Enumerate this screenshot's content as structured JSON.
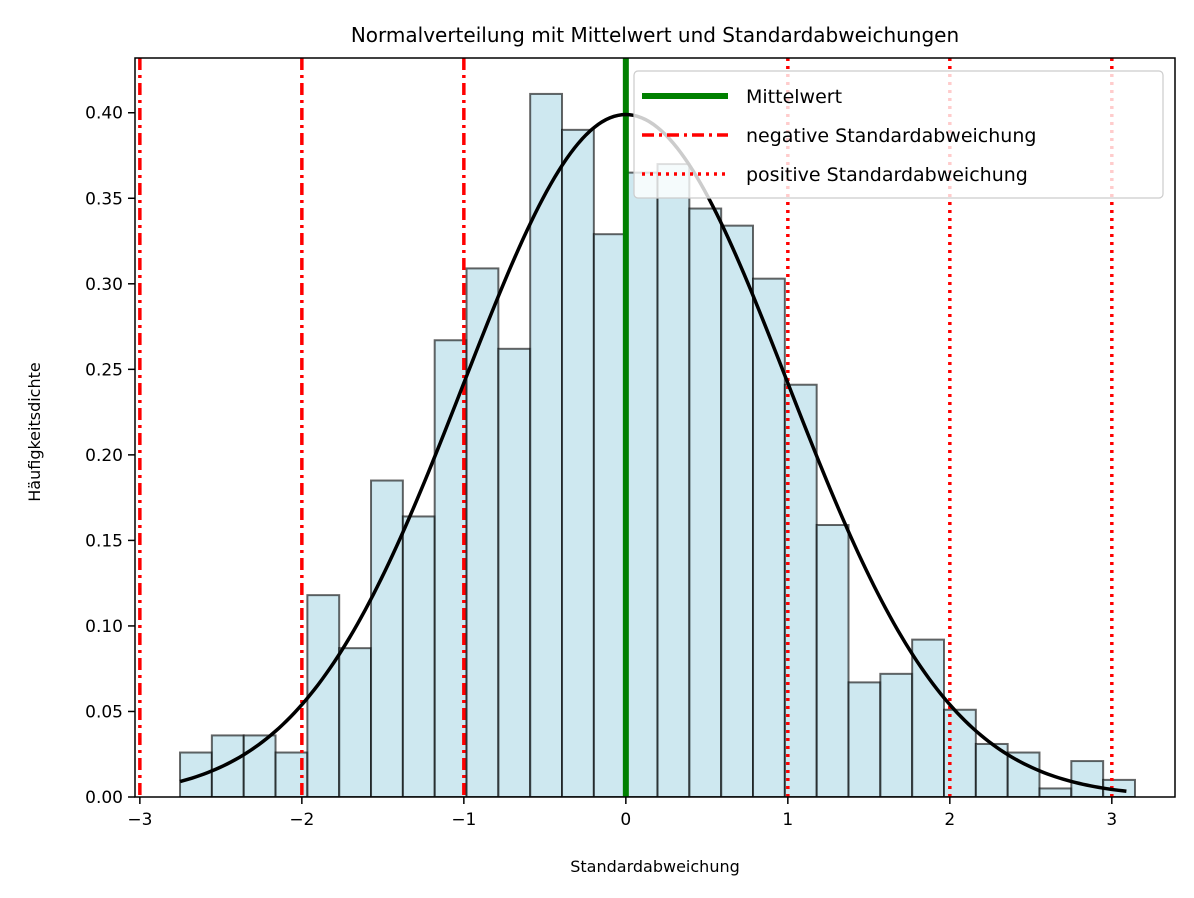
{
  "chart_data": {
    "type": "bar",
    "title": "Normalverteilung mit Mittelwert und Standardabweichungen",
    "xlabel": "Standardabweichung",
    "ylabel": "Häufigkeitsdichte",
    "xlim": [
      -3.03,
      3.39
    ],
    "ylim": [
      0,
      0.432
    ],
    "xticks": [
      -3,
      -2,
      -1,
      0,
      1,
      2,
      3
    ],
    "xtick_labels": [
      "−3",
      "−2",
      "−1",
      "0",
      "1",
      "2",
      "3"
    ],
    "yticks": [
      0.0,
      0.05,
      0.1,
      0.15,
      0.2,
      0.25,
      0.3,
      0.35,
      0.4
    ],
    "ytick_labels": [
      "0.00",
      "0.05",
      "0.10",
      "0.15",
      "0.20",
      "0.25",
      "0.30",
      "0.35",
      "0.40"
    ],
    "grid": false,
    "legend_position": "top-right",
    "histogram": {
      "bin_start": -2.752,
      "bin_width": 0.1965,
      "densities": [
        0.026,
        0.036,
        0.036,
        0.026,
        0.118,
        0.087,
        0.185,
        0.164,
        0.267,
        0.309,
        0.262,
        0.411,
        0.39,
        0.329,
        0.365,
        0.37,
        0.344,
        0.334,
        0.303,
        0.241,
        0.159,
        0.067,
        0.072,
        0.092,
        0.051,
        0.031,
        0.026,
        0.005,
        0.021,
        0.01
      ],
      "fill_color": "#add8e6",
      "edge_color": "#000000"
    },
    "pdf_curve": {
      "mean": 0,
      "std": 1,
      "x_range": [
        -2.752,
        3.09
      ],
      "color": "#000000"
    },
    "series": [
      {
        "name": "Mittelwert",
        "type": "vline",
        "x": [
          0
        ],
        "color": "#008000",
        "style": "solid"
      },
      {
        "name": "negative Standardabweichung",
        "type": "vline",
        "x": [
          -1,
          -2,
          -3
        ],
        "color": "#ff0000",
        "style": "dashdot"
      },
      {
        "name": "positive Standardabweichung",
        "type": "vline",
        "x": [
          1,
          2,
          3
        ],
        "color": "#ff0000",
        "style": "dotted"
      }
    ]
  }
}
